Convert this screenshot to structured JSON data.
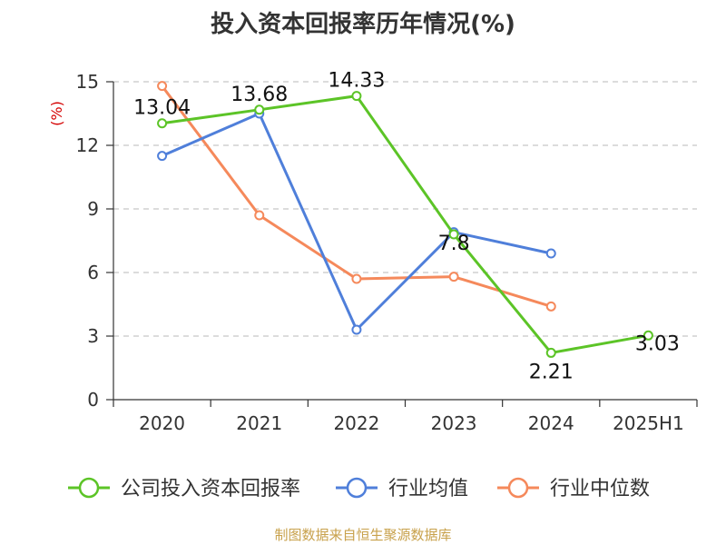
{
  "chart_data": {
    "type": "line",
    "title": "投入资本回报率历年情况(%)",
    "ylabel": "(%)",
    "categories": [
      "2020",
      "2021",
      "2022",
      "2023",
      "2024",
      "2025H1"
    ],
    "ylim": [
      0,
      15
    ],
    "yticks": [
      0,
      3,
      6,
      9,
      12,
      15
    ],
    "grid": true,
    "legend_position": "bottom",
    "series": [
      {
        "name": "公司投入资本回报率",
        "color": "#5cc427",
        "values": [
          13.04,
          13.68,
          14.33,
          7.8,
          2.21,
          3.03
        ],
        "labels": [
          "13.04",
          "13.68",
          "14.33",
          "7.8",
          "2.21",
          "3.03"
        ]
      },
      {
        "name": "行业均值",
        "color": "#4f7fda",
        "values": [
          11.5,
          13.5,
          3.3,
          7.9,
          6.9,
          null
        ]
      },
      {
        "name": "行业中位数",
        "color": "#f5895b",
        "values": [
          14.8,
          8.7,
          5.7,
          5.8,
          4.4,
          null
        ]
      }
    ]
  },
  "source_note": "制图数据来自恒生聚源数据库"
}
